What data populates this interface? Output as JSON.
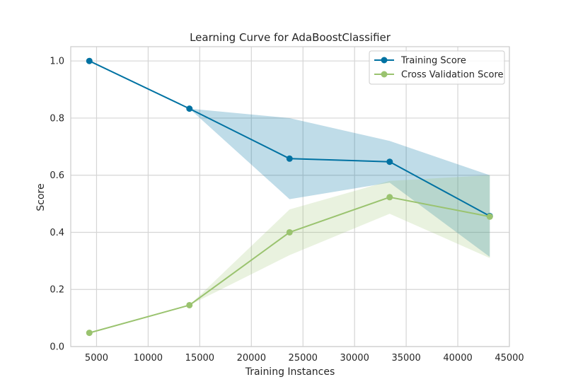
{
  "chart_data": {
    "type": "line",
    "title": "Learning Curve for AdaBoostClassifier",
    "xlabel": "Training Instances",
    "ylabel": "Score",
    "xlim": [
      2500,
      45000
    ],
    "ylim": [
      0.0,
      1.05
    ],
    "xticks": [
      5000,
      10000,
      15000,
      20000,
      25000,
      30000,
      35000,
      40000,
      45000
    ],
    "yticks": [
      0.0,
      0.2,
      0.4,
      0.6,
      0.8,
      1.0
    ],
    "ytick_labels": [
      "0.0",
      "0.2",
      "0.4",
      "0.6",
      "0.8",
      "1.0"
    ],
    "grid": true,
    "legend_position": "top-right",
    "series": [
      {
        "name": "Training Score",
        "color": "#0072a2",
        "band_color": "#0072a2",
        "x": [
          4300,
          14000,
          23700,
          33400,
          43100
        ],
        "y": [
          1.0,
          0.833,
          0.658,
          0.647,
          0.457
        ],
        "upper": [
          1.0,
          0.833,
          0.8,
          0.72,
          0.6
        ],
        "lower": [
          1.0,
          0.833,
          0.516,
          0.574,
          0.314
        ]
      },
      {
        "name": "Cross Validation Score",
        "color": "#9ac36f",
        "band_color": "#9ac36f",
        "x": [
          4300,
          14000,
          23700,
          33400,
          43100
        ],
        "y": [
          0.048,
          0.145,
          0.4,
          0.523,
          0.455
        ],
        "upper": [
          0.048,
          0.145,
          0.48,
          0.58,
          0.6
        ],
        "lower": [
          0.048,
          0.145,
          0.32,
          0.465,
          0.31
        ]
      }
    ]
  }
}
